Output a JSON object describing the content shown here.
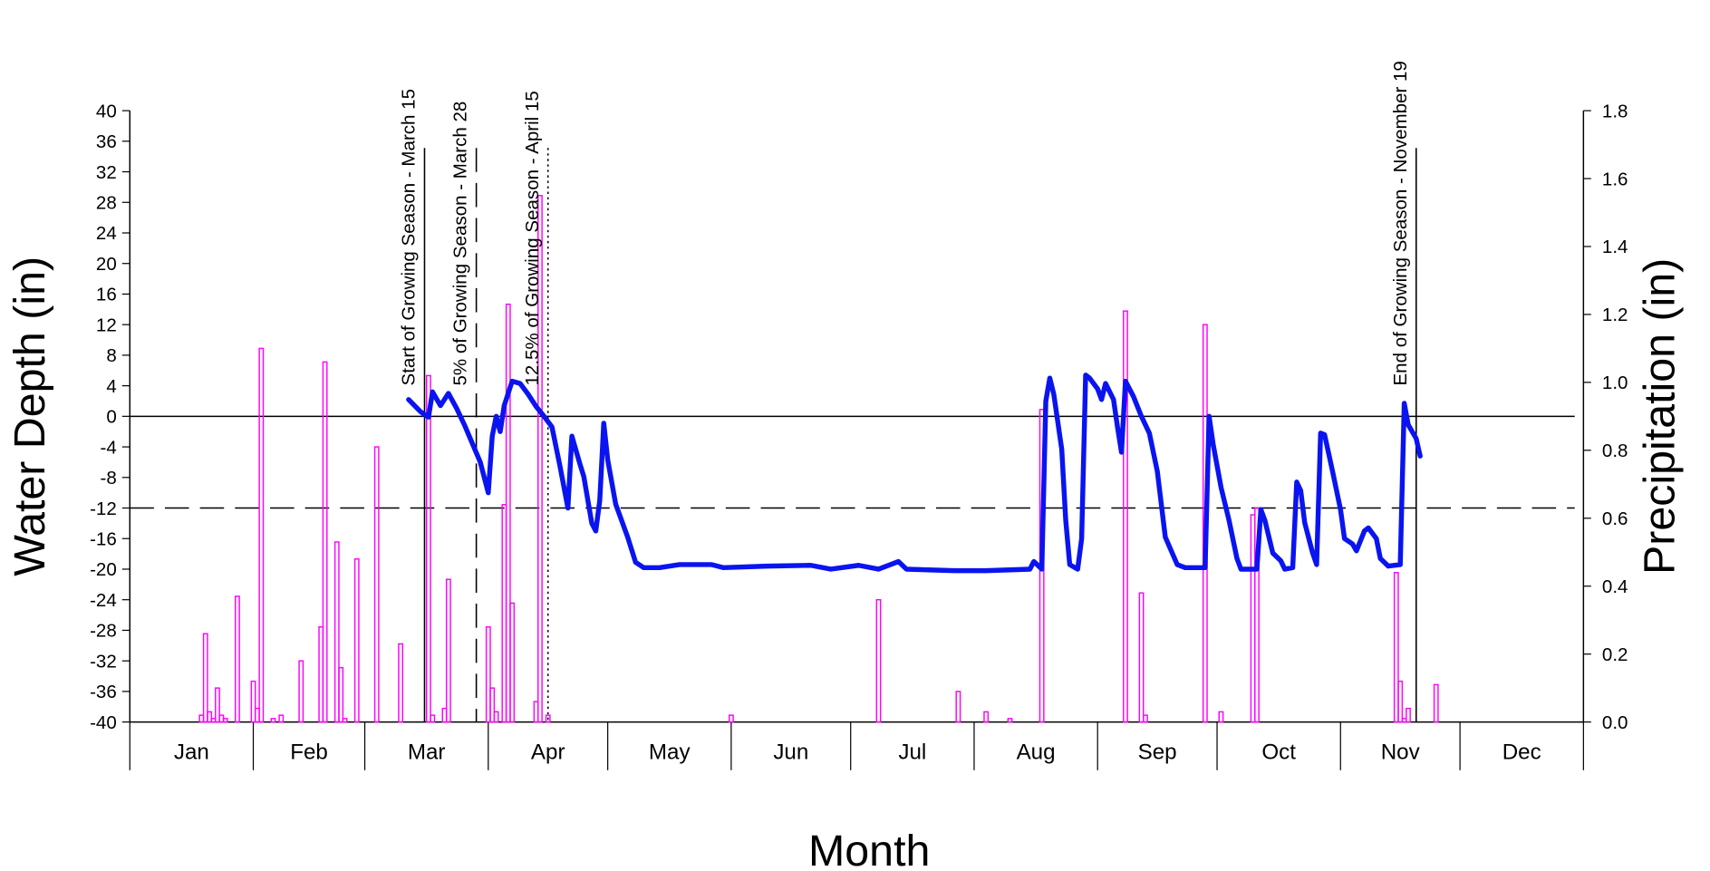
{
  "chart_data": {
    "type": "line-bar",
    "x_label": "Month",
    "y_label": "Water Depth (in)",
    "y2_label": "Precipitation (in)",
    "categories": [
      "Jan",
      "Feb",
      "Mar",
      "Apr",
      "May",
      "Jun",
      "Jul",
      "Aug",
      "Sep",
      "Oct",
      "Nov",
      "Dec"
    ],
    "xlim": [
      0,
      365
    ],
    "ylim": [
      -40,
      40
    ],
    "yticks": [
      -40,
      -36,
      -32,
      -28,
      -24,
      -20,
      -16,
      -12,
      -8,
      -4,
      0,
      4,
      8,
      12,
      16,
      20,
      24,
      28,
      32,
      36,
      40
    ],
    "y2lim": [
      0,
      1.8
    ],
    "y2ticks": [
      {
        "value": 0,
        "label": "0.0"
      },
      {
        "value": 0.2,
        "label": "0.2"
      },
      {
        "value": 0.4,
        "label": "0.4"
      },
      {
        "value": 0.6,
        "label": "0.6"
      },
      {
        "value": 0.8,
        "label": "0.8"
      },
      {
        "value": 1.0,
        "label": "1.0"
      },
      {
        "value": 1.2,
        "label": "1.2"
      },
      {
        "value": 1.4,
        "label": "1.4"
      },
      {
        "value": 1.6,
        "label": "1.6"
      },
      {
        "value": 1.8,
        "label": "1.8"
      }
    ],
    "series": [
      {
        "type": "line",
        "color": "#0a14f0",
        "x": [
          70,
          73,
          75,
          76,
          78,
          80,
          82,
          84,
          88,
          90,
          91,
          92,
          93,
          94,
          96,
          98,
          100,
          102,
          104,
          106,
          108,
          110,
          111,
          113,
          114,
          116,
          117,
          118,
          119,
          120,
          122,
          125,
          127,
          129,
          133,
          138,
          146,
          149,
          160,
          171,
          176,
          183,
          188,
          193,
          195,
          207,
          215,
          226,
          227,
          229,
          230,
          231,
          232,
          234,
          235,
          236,
          238,
          239,
          240,
          241,
          243,
          244,
          245,
          247,
          248,
          249,
          250,
          252,
          254,
          256,
          258,
          260,
          263,
          265,
          270,
          271,
          272,
          274,
          276,
          278,
          279,
          283,
          284,
          285,
          287,
          289,
          290,
          292,
          293,
          294,
          295,
          297,
          298,
          299,
          300,
          302,
          304,
          305,
          307,
          308,
          310,
          311,
          313,
          314,
          316,
          319,
          320,
          321,
          323,
          324
        ],
        "values": [
          2.2,
          0.6,
          -0.1,
          3.2,
          1.4,
          3,
          1.1,
          -1.1,
          -6,
          -10,
          -2.6,
          0,
          -2,
          1.4,
          4.6,
          4.3,
          2.9,
          1.3,
          0,
          -1.4,
          -6.5,
          -12,
          -2.6,
          -6.2,
          -7.9,
          -14,
          -15,
          -11,
          -0.9,
          -5.7,
          -11.5,
          -15.8,
          -19.1,
          -19.8,
          -19.8,
          -19.4,
          -19.4,
          -19.8,
          -19.6,
          -19.5,
          -20,
          -19.5,
          -20,
          -19,
          -20,
          -20.2,
          -20.2,
          -20,
          -19,
          -20,
          2,
          5,
          2.9,
          -4.3,
          -13.6,
          -19.4,
          -20,
          -16,
          5.4,
          5,
          3.6,
          2.2,
          4.3,
          2.2,
          -1.4,
          -4.7,
          4.6,
          2.6,
          0,
          -2.2,
          -7.2,
          -15.8,
          -19.4,
          -19.8,
          -19.8,
          0,
          -3.6,
          -9.3,
          -13.6,
          -18.6,
          -20,
          -20,
          -12.2,
          -13.6,
          -17.9,
          -18.9,
          -20,
          -19.8,
          -8.6,
          -9.7,
          -13.9,
          -17.9,
          -19.4,
          -2.2,
          -2.4,
          -7.2,
          -12.2,
          -16,
          -16.7,
          -17.6,
          -15,
          -14.6,
          -16,
          -18.6,
          -19.6,
          -19.4,
          1.7,
          -1.1,
          -2.9,
          -5.2
        ]
      },
      {
        "type": "bar",
        "axis": "y2",
        "color": "#ff00ff",
        "x": [
          18,
          19,
          20,
          21,
          22,
          23,
          24,
          27,
          31,
          32,
          33,
          36,
          38,
          43,
          48,
          49,
          52,
          53,
          54,
          57,
          62,
          68,
          75,
          76,
          79,
          80,
          90,
          91,
          92,
          94,
          95,
          96,
          102,
          103,
          105,
          151,
          188,
          208,
          215,
          221,
          229,
          250,
          254,
          255,
          270,
          274,
          282,
          283,
          318,
          319,
          320,
          321,
          328
        ],
        "values": [
          0.02,
          0.26,
          0.03,
          0.01,
          0.1,
          0.02,
          0.01,
          0.37,
          0.12,
          0.04,
          1.1,
          0.01,
          0.02,
          0.18,
          0.28,
          1.06,
          0.53,
          0.16,
          0.01,
          0.48,
          0.81,
          0.23,
          1.02,
          0.02,
          0.04,
          0.42,
          0.28,
          0.1,
          0.03,
          0.64,
          1.23,
          0.35,
          0.06,
          1.55,
          0.02,
          0.02,
          0.36,
          0.09,
          0.03,
          0.01,
          0.92,
          1.21,
          0.38,
          0.02,
          1.17,
          0.03,
          0.61,
          0.63,
          0.44,
          0.12,
          0.01,
          0.04,
          0.11
        ]
      }
    ],
    "hlines": [
      {
        "value": 0,
        "style": "solid"
      },
      {
        "value": -12,
        "style": "dashed"
      }
    ],
    "vlines": [
      {
        "x": 74,
        "label": "Start of Growing Season - March 15",
        "style": "solid"
      },
      {
        "x": 87,
        "label": "5% of Growing Season - March 28",
        "style": "dashed"
      },
      {
        "x": 105,
        "label": "12.5% of Growing Season - April 15",
        "style": "dotted"
      },
      {
        "x": 323,
        "label": "End of Growing Season - November 19",
        "style": "solid"
      }
    ]
  }
}
